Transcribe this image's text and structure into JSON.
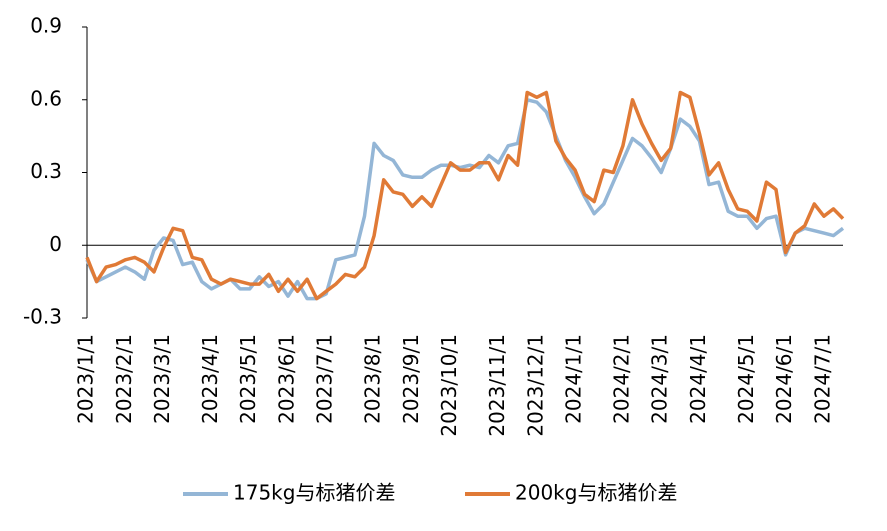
{
  "chart_data": {
    "type": "line",
    "categories": [
      "2023/1/1",
      null,
      null,
      null,
      "2023/2/1",
      null,
      null,
      null,
      "2023/3/1",
      null,
      null,
      null,
      null,
      "2023/4/1",
      null,
      null,
      null,
      "2023/5/1",
      null,
      null,
      null,
      "2023/6/1",
      null,
      null,
      null,
      "2023/7/1",
      null,
      null,
      null,
      null,
      "2023/8/1",
      null,
      null,
      null,
      "2023/9/1",
      null,
      null,
      null,
      "2023/10/1",
      null,
      null,
      null,
      null,
      "2023/11/1",
      null,
      null,
      null,
      "2023/12/1",
      null,
      null,
      null,
      "2024/1/1",
      null,
      null,
      null,
      null,
      "2024/2/1",
      null,
      null,
      null,
      "2024/3/1",
      null,
      null,
      null,
      "2024/4/1",
      null,
      null,
      null,
      null,
      "2024/5/1",
      null,
      null,
      null,
      "2024/6/1",
      null,
      null,
      null,
      "2024/7/1",
      null,
      null
    ],
    "series": [
      {
        "name": "175kg与标猪价差",
        "color": "#94b6d6",
        "values": [
          -0.06,
          -0.15,
          -0.13,
          -0.11,
          -0.09,
          -0.11,
          -0.14,
          -0.02,
          0.03,
          0.02,
          -0.08,
          -0.07,
          -0.15,
          -0.18,
          -0.16,
          -0.14,
          -0.18,
          -0.18,
          -0.13,
          -0.17,
          -0.15,
          -0.21,
          -0.15,
          -0.22,
          -0.22,
          -0.2,
          -0.06,
          -0.05,
          -0.04,
          0.12,
          0.42,
          0.37,
          0.35,
          0.29,
          0.28,
          0.28,
          0.31,
          0.33,
          0.33,
          0.32,
          0.33,
          0.32,
          0.37,
          0.34,
          0.41,
          0.42,
          0.6,
          0.59,
          0.55,
          0.45,
          0.35,
          0.28,
          0.2,
          0.13,
          0.17,
          0.26,
          0.35,
          0.44,
          0.41,
          0.36,
          0.3,
          0.4,
          0.52,
          0.49,
          0.43,
          0.25,
          0.26,
          0.14,
          0.12,
          0.12,
          0.07,
          0.11,
          0.12,
          -0.04,
          0.05,
          0.07,
          0.06,
          0.05,
          0.04,
          0.07
        ]
      },
      {
        "name": "200kg与标猪价差",
        "color": "#e07a36",
        "values": [
          -0.05,
          -0.15,
          -0.09,
          -0.08,
          -0.06,
          -0.05,
          -0.07,
          -0.11,
          -0.01,
          0.07,
          0.06,
          -0.05,
          -0.06,
          -0.14,
          -0.16,
          -0.14,
          -0.15,
          -0.16,
          -0.16,
          -0.12,
          -0.19,
          -0.14,
          -0.19,
          -0.14,
          -0.22,
          -0.19,
          -0.16,
          -0.12,
          -0.13,
          -0.09,
          0.04,
          0.27,
          0.22,
          0.21,
          0.16,
          0.2,
          0.16,
          0.25,
          0.34,
          0.31,
          0.31,
          0.34,
          0.34,
          0.27,
          0.37,
          0.33,
          0.63,
          0.61,
          0.63,
          0.43,
          0.36,
          0.31,
          0.21,
          0.18,
          0.31,
          0.3,
          0.41,
          0.6,
          0.5,
          0.42,
          0.35,
          0.4,
          0.63,
          0.61,
          0.46,
          0.29,
          0.34,
          0.23,
          0.15,
          0.14,
          0.1,
          0.26,
          0.23,
          -0.03,
          0.05,
          0.08,
          0.17,
          0.12,
          0.15,
          0.11
        ]
      }
    ],
    "ylim": [
      -0.3,
      0.9
    ],
    "yticks": [
      -0.3,
      0,
      0.3,
      0.6,
      0.9
    ]
  }
}
